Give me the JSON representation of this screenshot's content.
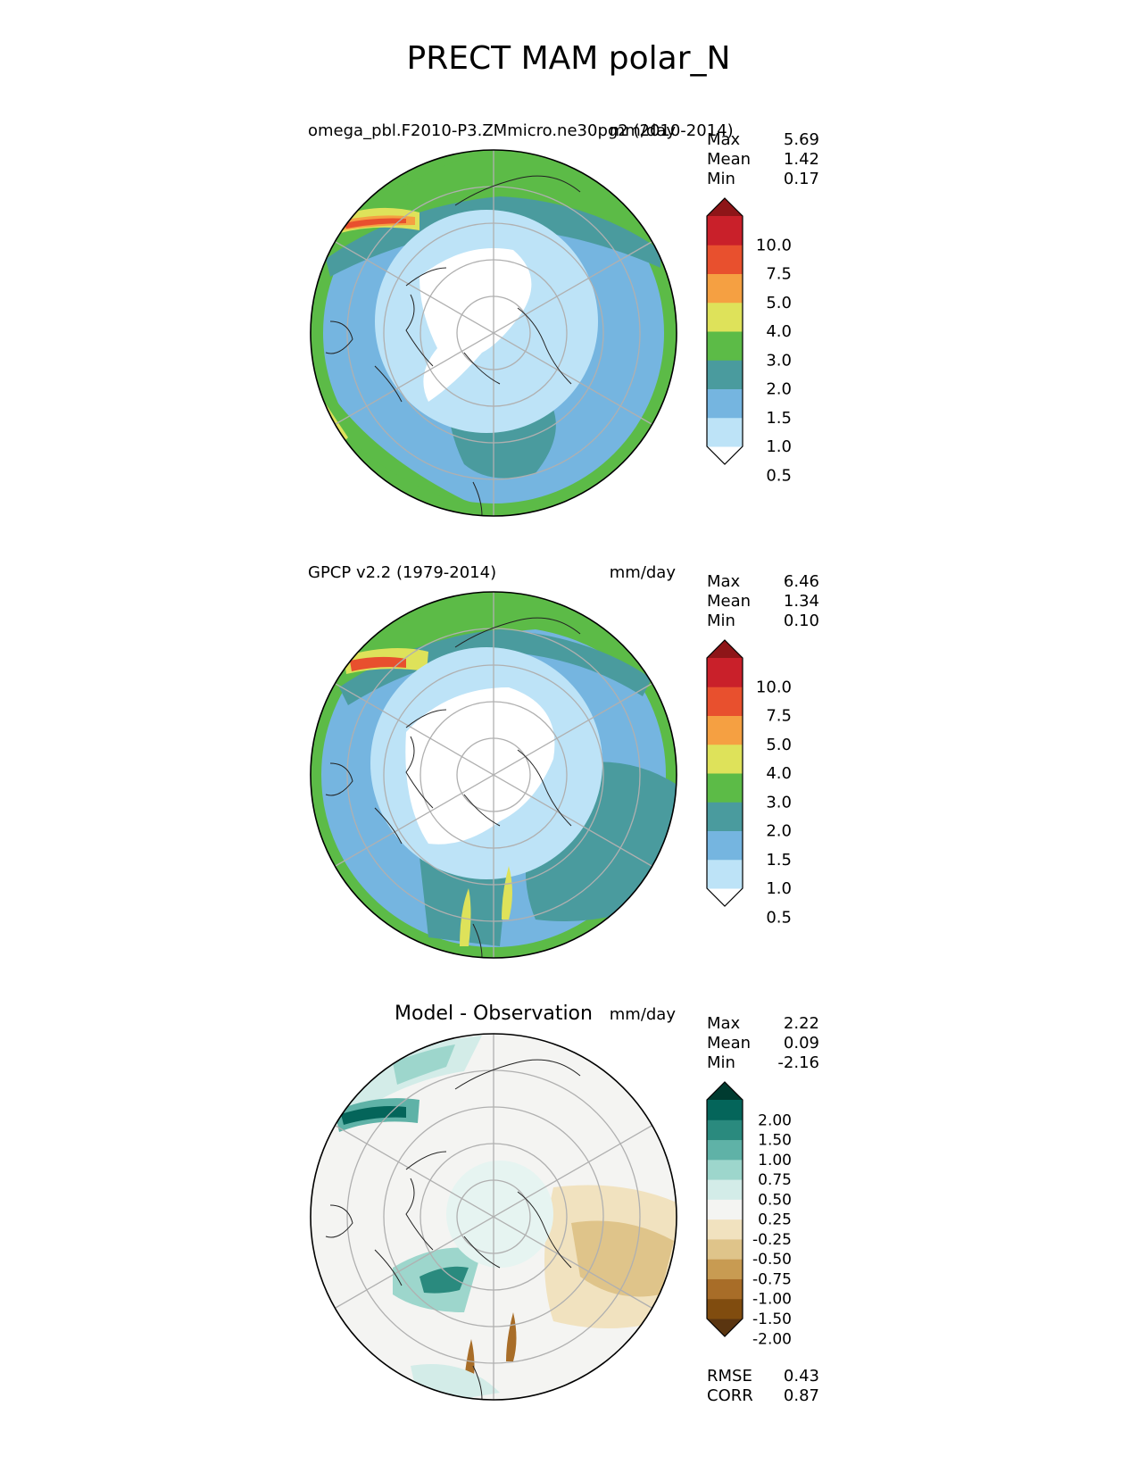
{
  "figure": {
    "title": "PRECT MAM polar_N"
  },
  "panels": [
    {
      "id": "model",
      "left_label": "omega_pbl.F2010-P3.ZMmicro.ne30pg2 (2010-2014)",
      "center_label": "",
      "units": "mm/day",
      "stats": [
        {
          "label": "Max",
          "value": "5.69"
        },
        {
          "label": "Mean",
          "value": "1.42"
        },
        {
          "label": "Min",
          "value": "0.17"
        }
      ],
      "colorbar_levels": [
        "10.0",
        "7.5",
        "5.0",
        "4.0",
        "3.0",
        "2.0",
        "1.5",
        "1.0",
        "0.5"
      ],
      "colorbar_colors": [
        "#ffffff",
        "#bde3f7",
        "#75b5e0",
        "#4a9b9e",
        "#5cbb47",
        "#dee25a",
        "#f5a042",
        "#e8502e",
        "#c9202a",
        "#8e1518"
      ]
    },
    {
      "id": "obs",
      "left_label": "GPCP v2.2 (1979-2014)",
      "center_label": "",
      "units": "mm/day",
      "stats": [
        {
          "label": "Max",
          "value": "6.46"
        },
        {
          "label": "Mean",
          "value": "1.34"
        },
        {
          "label": "Min",
          "value": "0.10"
        }
      ],
      "colorbar_levels": [
        "10.0",
        "7.5",
        "5.0",
        "4.0",
        "3.0",
        "2.0",
        "1.5",
        "1.0",
        "0.5"
      ],
      "colorbar_colors": [
        "#ffffff",
        "#bde3f7",
        "#75b5e0",
        "#4a9b9e",
        "#5cbb47",
        "#dee25a",
        "#f5a042",
        "#e8502e",
        "#c9202a",
        "#8e1518"
      ]
    },
    {
      "id": "diff",
      "left_label": "",
      "center_label": "Model - Observation",
      "units": "mm/day",
      "stats": [
        {
          "label": "Max",
          "value": "2.22"
        },
        {
          "label": "Mean",
          "value": "0.09"
        },
        {
          "label": "Min",
          "value": "-2.16"
        }
      ],
      "colorbar_levels": [
        "2.00",
        "1.50",
        "1.00",
        "0.75",
        "0.50",
        "0.25",
        "-0.25",
        "-0.50",
        "-0.75",
        "-1.00",
        "-1.50",
        "-2.00"
      ],
      "colorbar_colors": [
        "#5a3510",
        "#804c0f",
        "#a86d28",
        "#c89b52",
        "#dfc48a",
        "#f1e2bf",
        "#f4f4f2",
        "#d3ece8",
        "#9dd6cc",
        "#5fb2a7",
        "#2a8a7e",
        "#04655a",
        "#003b30"
      ],
      "metrics": [
        {
          "label": "RMSE",
          "value": "0.43"
        },
        {
          "label": "CORR",
          "value": "0.87"
        }
      ]
    }
  ]
}
